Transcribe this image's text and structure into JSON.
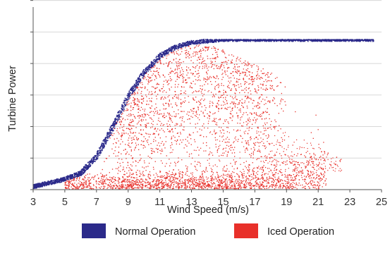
{
  "chart_data": {
    "type": "scatter",
    "xlabel": "Wind Speed (m/s)",
    "ylabel": "Turbine Power",
    "xlim": [
      3,
      25
    ],
    "x_ticks": [
      "3",
      "5",
      "7",
      "9",
      "11",
      "13",
      "15",
      "17",
      "19",
      "21",
      "23",
      "25"
    ],
    "y_tick_count": 6,
    "y_tick_labels": "none",
    "grid": "horizontal",
    "legend_placement": "bottom",
    "series": [
      {
        "name": "Normal Operation",
        "color": "#2b2a8a",
        "shape": "narrow sigmoid band rising from low power near 3 m/s to rated power near 15 m/s, flat to about 24.5 m/s",
        "curve": [
          [
            3,
            0.02
          ],
          [
            5,
            0.07
          ],
          [
            6,
            0.11
          ],
          [
            7,
            0.22
          ],
          [
            8,
            0.41
          ],
          [
            9,
            0.62
          ],
          [
            10,
            0.78
          ],
          [
            11,
            0.89
          ],
          [
            12,
            0.95
          ],
          [
            13,
            0.98
          ],
          [
            15,
            1.0
          ],
          [
            24.5,
            1.0
          ]
        ]
      },
      {
        "name": "Iced Operation",
        "color": "#e8302a",
        "shape": "wide spread below the normal curve; dense cloud 10-14 m/s at mid-to-high power and dense band near low power from 6 to 22 m/s",
        "x_range": [
          4,
          22.5
        ]
      }
    ]
  }
}
